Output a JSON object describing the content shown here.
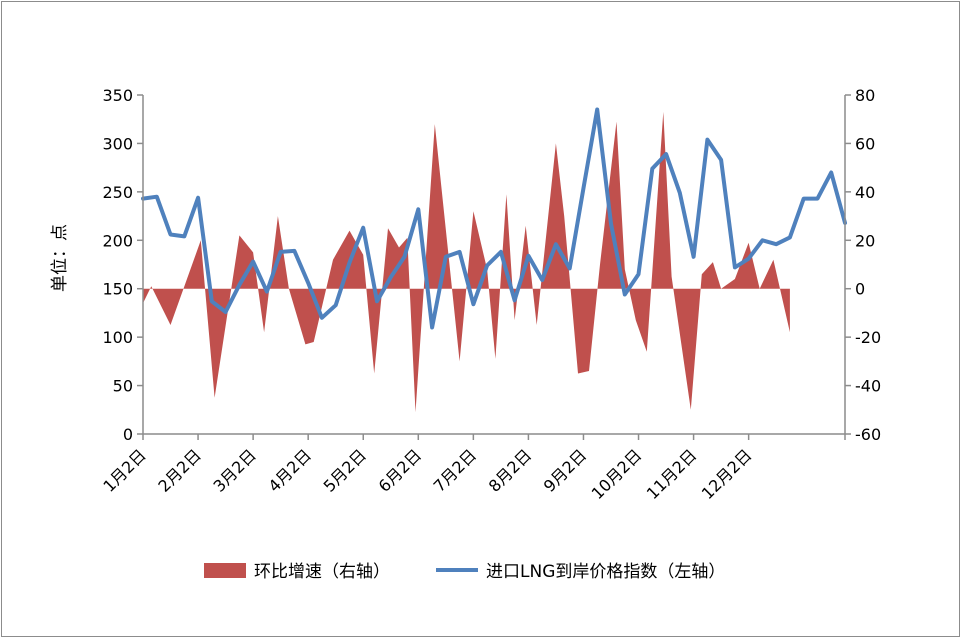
{
  "chart_data": {
    "type": "area+line",
    "ylabel_left": "单位：点",
    "left_axis": {
      "min": 0,
      "max": 350,
      "ticks": [
        0,
        50,
        100,
        150,
        200,
        250,
        300,
        350
      ]
    },
    "right_axis": {
      "min": -60,
      "max": 80,
      "ticks": [
        -60,
        -40,
        -20,
        0,
        20,
        40,
        60,
        80
      ]
    },
    "x_tick_labels": [
      "1月2日",
      "2月2日",
      "3月2日",
      "4月2日",
      "5月2日",
      "6月2日",
      "7月2日",
      "8月2日",
      "9月2日",
      "10月2日",
      "11月2日",
      "12月2日"
    ],
    "legend": {
      "position": "bottom"
    },
    "series": [
      {
        "name": "环比增速（右轴）",
        "kind": "area",
        "axis": "right",
        "color": "#c0504d",
        "values": [
          [
            0,
            -6
          ],
          [
            0.15,
            1
          ],
          [
            0.5,
            -15
          ],
          [
            1.05,
            20
          ],
          [
            1.3,
            -45
          ],
          [
            1.75,
            22
          ],
          [
            2.0,
            15
          ],
          [
            2.2,
            -18
          ],
          [
            2.45,
            30
          ],
          [
            2.65,
            0
          ],
          [
            2.95,
            -23
          ],
          [
            3.1,
            -22
          ],
          [
            3.45,
            12
          ],
          [
            3.75,
            24
          ],
          [
            4.0,
            14
          ],
          [
            4.2,
            -35
          ],
          [
            4.45,
            25
          ],
          [
            4.65,
            17
          ],
          [
            4.8,
            21
          ],
          [
            4.95,
            -51
          ],
          [
            5.3,
            68
          ],
          [
            5.75,
            -30
          ],
          [
            6.0,
            32
          ],
          [
            6.25,
            8
          ],
          [
            6.4,
            -29
          ],
          [
            6.6,
            39
          ],
          [
            6.75,
            -13
          ],
          [
            6.95,
            26
          ],
          [
            7.15,
            -15
          ],
          [
            7.5,
            60
          ],
          [
            7.65,
            30
          ],
          [
            7.9,
            -35
          ],
          [
            8.1,
            -34
          ],
          [
            8.3,
            10
          ],
          [
            8.6,
            69
          ],
          [
            8.75,
            8
          ],
          [
            8.95,
            -13
          ],
          [
            9.15,
            -26
          ],
          [
            9.45,
            73
          ],
          [
            9.6,
            5
          ],
          [
            9.95,
            -50
          ],
          [
            10.15,
            6
          ],
          [
            10.35,
            11
          ],
          [
            10.5,
            0
          ],
          [
            10.75,
            4
          ],
          [
            11.0,
            19
          ],
          [
            11.2,
            0
          ],
          [
            11.45,
            12
          ],
          [
            11.75,
            -18
          ]
        ]
      },
      {
        "name": "进口LNG到岸价格指数（左轴）",
        "kind": "line",
        "axis": "left",
        "color": "#4f81bd",
        "values": [
          [
            0,
            243
          ],
          [
            0.25,
            245
          ],
          [
            0.5,
            206
          ],
          [
            0.75,
            204
          ],
          [
            1.0,
            244
          ],
          [
            1.25,
            137
          ],
          [
            1.5,
            126
          ],
          [
            1.75,
            154
          ],
          [
            2.0,
            178
          ],
          [
            2.25,
            147
          ],
          [
            2.5,
            188
          ],
          [
            2.75,
            189
          ],
          [
            3.0,
            156
          ],
          [
            3.25,
            120
          ],
          [
            3.5,
            133
          ],
          [
            3.75,
            177
          ],
          [
            4.0,
            213
          ],
          [
            4.25,
            137
          ],
          [
            4.5,
            162
          ],
          [
            4.75,
            183
          ],
          [
            5.0,
            232
          ],
          [
            5.25,
            110
          ],
          [
            5.5,
            183
          ],
          [
            5.75,
            188
          ],
          [
            6.0,
            134
          ],
          [
            6.25,
            174
          ],
          [
            6.5,
            188
          ],
          [
            6.75,
            138
          ],
          [
            7.0,
            184
          ],
          [
            7.25,
            159
          ],
          [
            7.5,
            196
          ],
          [
            7.75,
            171
          ],
          [
            8.0,
            254
          ],
          [
            8.25,
            335
          ],
          [
            8.5,
            217
          ],
          [
            8.75,
            144
          ],
          [
            9.0,
            165
          ],
          [
            9.25,
            274
          ],
          [
            9.5,
            289
          ],
          [
            9.75,
            249
          ],
          [
            10.0,
            183
          ],
          [
            10.25,
            304
          ],
          [
            10.5,
            283
          ],
          [
            10.75,
            172
          ],
          [
            11.0,
            181
          ],
          [
            11.25,
            200
          ],
          [
            11.5,
            196
          ],
          [
            11.75,
            203
          ],
          [
            12.0,
            243
          ],
          [
            12.25,
            243
          ],
          [
            12.5,
            270
          ],
          [
            12.75,
            218
          ]
        ]
      }
    ]
  }
}
